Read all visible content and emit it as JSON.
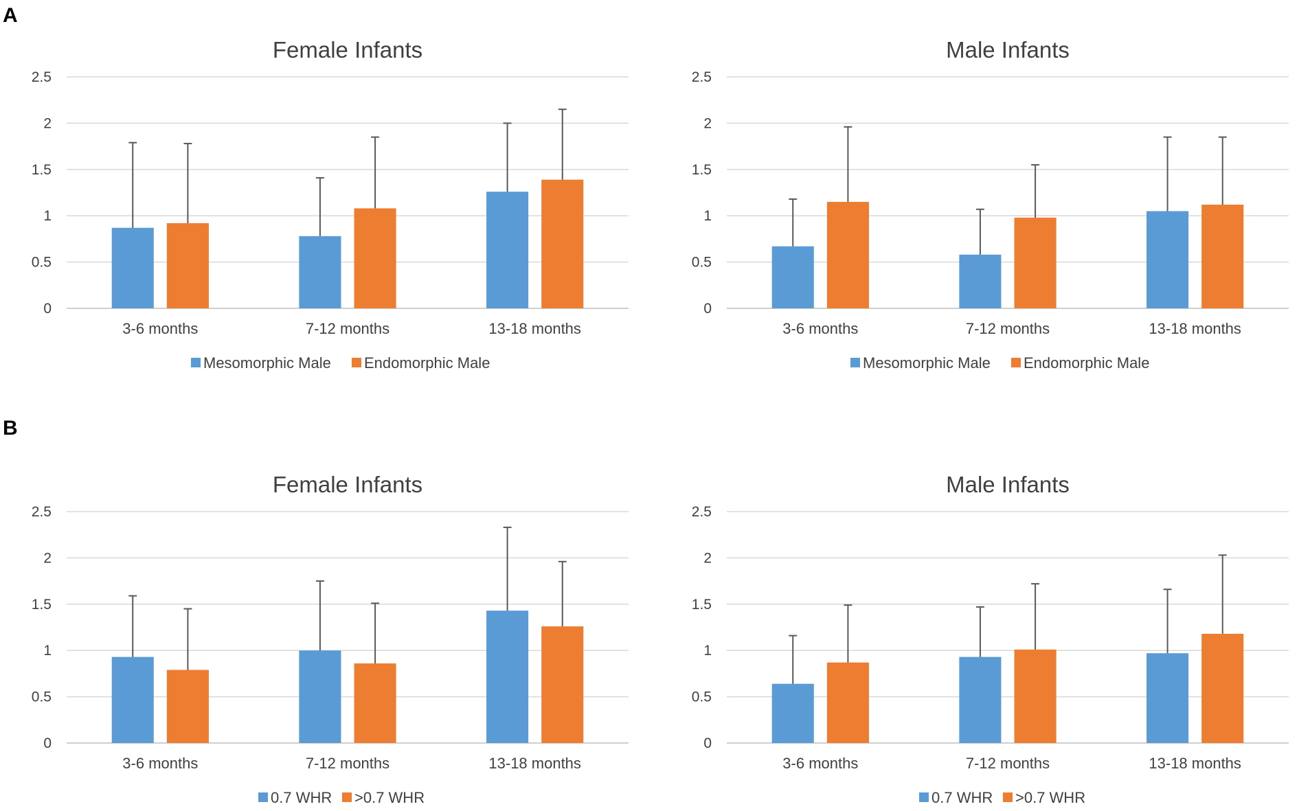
{
  "panels": [
    {
      "letter": "A"
    },
    {
      "letter": "B"
    }
  ],
  "colors": {
    "series1": "#5b9bd5",
    "series2": "#ed7d31"
  },
  "chart_data": [
    {
      "panel": "A",
      "type": "bar",
      "title": "Female Infants",
      "categories": [
        "3-6 months",
        "7-12 months",
        "13-18 months"
      ],
      "yticks": [
        "0",
        "0.5",
        "1",
        "1.5",
        "2",
        "2.5"
      ],
      "ylim": [
        0,
        2.5
      ],
      "grid": true,
      "legend_position": "bottom",
      "series": [
        {
          "name": "Mesomorphic Male",
          "values": [
            0.87,
            0.78,
            1.26
          ],
          "error_upper": [
            1.79,
            1.41,
            2.0
          ]
        },
        {
          "name": "Endomorphic Male",
          "values": [
            0.92,
            1.08,
            1.39
          ],
          "error_upper": [
            1.78,
            1.85,
            2.15
          ]
        }
      ]
    },
    {
      "panel": "A",
      "type": "bar",
      "title": "Male Infants",
      "categories": [
        "3-6 months",
        "7-12 months",
        "13-18 months"
      ],
      "yticks": [
        "0",
        "0.5",
        "1",
        "1.5",
        "2",
        "2.5"
      ],
      "ylim": [
        0,
        2.5
      ],
      "grid": true,
      "legend_position": "bottom",
      "series": [
        {
          "name": "Mesomorphic Male",
          "values": [
            0.67,
            0.58,
            1.05
          ],
          "error_upper": [
            1.18,
            1.07,
            1.85
          ]
        },
        {
          "name": "Endomorphic Male",
          "values": [
            1.15,
            0.98,
            1.12
          ],
          "error_upper": [
            1.96,
            1.55,
            1.85
          ]
        }
      ]
    },
    {
      "panel": "B",
      "type": "bar",
      "title": "Female Infants",
      "categories": [
        "3-6 months",
        "7-12 months",
        "13-18 months"
      ],
      "yticks": [
        "0",
        "0.5",
        "1",
        "1.5",
        "2",
        "2.5"
      ],
      "ylim": [
        0,
        2.5
      ],
      "grid": true,
      "legend_position": "bottom",
      "series": [
        {
          "name": "0.7 WHR",
          "values": [
            0.93,
            1.0,
            1.43
          ],
          "error_upper": [
            1.59,
            1.75,
            2.33
          ]
        },
        {
          "name": ">0.7 WHR",
          "values": [
            0.79,
            0.86,
            1.26
          ],
          "error_upper": [
            1.45,
            1.51,
            1.96
          ]
        }
      ]
    },
    {
      "panel": "B",
      "type": "bar",
      "title": "Male Infants",
      "categories": [
        "3-6 months",
        "7-12 months",
        "13-18 months"
      ],
      "yticks": [
        "0",
        "0.5",
        "1",
        "1.5",
        "2",
        "2.5"
      ],
      "ylim": [
        0,
        2.5
      ],
      "grid": true,
      "legend_position": "bottom",
      "series": [
        {
          "name": "0.7 WHR",
          "values": [
            0.64,
            0.93,
            0.97
          ],
          "error_upper": [
            1.16,
            1.47,
            1.66
          ]
        },
        {
          "name": ">0.7 WHR",
          "values": [
            0.87,
            1.01,
            1.18
          ],
          "error_upper": [
            1.49,
            1.72,
            2.03
          ]
        }
      ]
    }
  ]
}
